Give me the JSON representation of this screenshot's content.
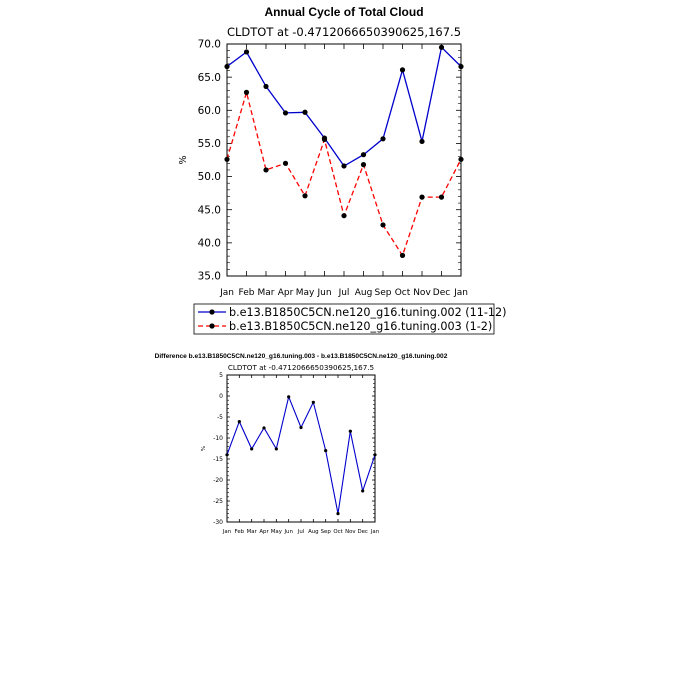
{
  "chart_data": [
    {
      "type": "line",
      "title": "Annual Cycle of Total Cloud",
      "subtitle": "CLDTOT at -0.4712066650390625,167.5",
      "ylabel": "%",
      "xlabel": "",
      "categories": [
        "Jan",
        "Feb",
        "Mar",
        "Apr",
        "May",
        "Jun",
        "Jul",
        "Aug",
        "Sep",
        "Oct",
        "Nov",
        "Dec",
        "Jan"
      ],
      "ylim": [
        35.0,
        70.0
      ],
      "yticks": [
        "35.0",
        "40.0",
        "45.0",
        "50.0",
        "55.0",
        "60.0",
        "65.0",
        "70.0"
      ],
      "legend_position": "bottom",
      "series": [
        {
          "name": "b.e13.B1850C5CN.ne120_g16.tuning.002 (11-12)",
          "color": "#0000cc",
          "dash": "solid",
          "values": [
            66.6,
            68.8,
            63.6,
            59.6,
            59.7,
            55.8,
            51.6,
            53.3,
            55.7,
            66.1,
            55.3,
            69.5,
            66.6
          ]
        },
        {
          "name": "b.e13.B1850C5CN.ne120_g16.tuning.003 (1-2)",
          "color": "#ff0000",
          "dash": "dashed",
          "values": [
            52.6,
            62.7,
            51.0,
            52.0,
            47.1,
            55.6,
            44.1,
            51.8,
            42.7,
            38.1,
            46.9,
            46.9,
            52.6
          ]
        }
      ]
    },
    {
      "type": "line",
      "title": "Difference b.e13.B1850C5CN.ne120_g16.tuning.003 - b.e13.B1850C5CN.ne120_g16.tuning.002",
      "subtitle": "CLDTOT at -0.4712066650390625,167.5",
      "ylabel": "%",
      "xlabel": "",
      "categories": [
        "Jan",
        "Feb",
        "Mar",
        "Apr",
        "May",
        "Jun",
        "Jul",
        "Aug",
        "Sep",
        "Oct",
        "Nov",
        "Dec",
        "Jan"
      ],
      "ylim": [
        -30,
        5
      ],
      "yticks": [
        "-30",
        "-25",
        "-20",
        "-15",
        "-10",
        "-5",
        "0",
        "5"
      ],
      "series": [
        {
          "name": "Difference",
          "color": "#0000cc",
          "dash": "solid",
          "values": [
            -14.0,
            -6.1,
            -12.6,
            -7.6,
            -12.6,
            -0.2,
            -7.5,
            -1.5,
            -13.0,
            -28.0,
            -8.4,
            -22.6,
            -14.0
          ]
        }
      ]
    }
  ]
}
